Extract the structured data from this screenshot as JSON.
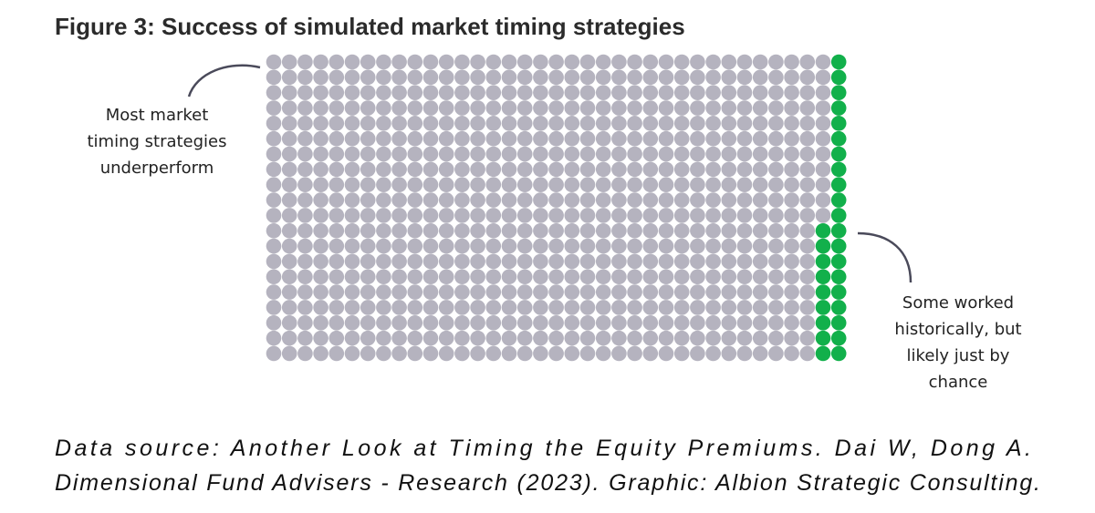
{
  "chart_data": {
    "type": "waffle",
    "title": "Figure 3: Success of simulated market timing strategies",
    "values": [
      711,
      29
    ],
    "colors": [
      "#b5b3bf",
      "#12b04b"
    ],
    "annotations": [
      [
        "Most market",
        "timing strategies",
        "underperform"
      ],
      [
        "Some worked",
        "historically, but",
        "likely just by",
        "chance"
      ]
    ],
    "source": [
      "Data source: Another Look at Timing the Equity Premiums. Dai W, Dong A.",
      "Dimensional Fund Advisers - Research (2023). Graphic: Albion Strategic Consulting."
    ]
  }
}
